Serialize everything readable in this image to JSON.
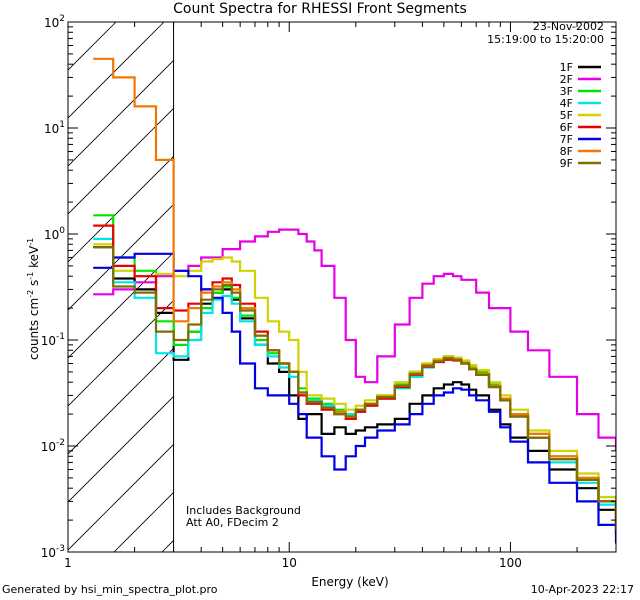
{
  "title": "Count Spectra for RHESSI Front Segments",
  "header_info": {
    "date": "23-Nov-2002",
    "time_range": "15:19:00 to 15:20:00"
  },
  "notes": {
    "background": "Includes Background",
    "attenuator": "Att A0, FDecim 2"
  },
  "footer": {
    "generated_by": "Generated by hsi_min_spectra_plot.pro",
    "timestamp": "10-Apr-2023 22:17"
  },
  "chart_data": {
    "type": "line",
    "title": "Count Spectra for RHESSI Front Segments",
    "xlabel": "Energy (keV)",
    "ylabel": "counts cm-2 s-1 keV-1",
    "xscale": "log",
    "yscale": "log",
    "xlim": [
      1,
      300
    ],
    "ylim": [
      0.001,
      100
    ],
    "x_tick_labels": [
      "1",
      "10",
      "100"
    ],
    "y_tick_labels": [
      "10^-3",
      "10^-2",
      "10^-1",
      "10^0",
      "10^1",
      "10^2"
    ],
    "y_tick_values": [
      0.001,
      0.01,
      0.1,
      1,
      10,
      100
    ],
    "x_tick_values": [
      1,
      10,
      100
    ],
    "hatched_region_keV": [
      1,
      3
    ],
    "legend_position": "top-right",
    "series": [
      {
        "name": "1F",
        "color": "#000000",
        "x": [
          1.3,
          1.6,
          2.0,
          2.5,
          3.0,
          3.5,
          4.0,
          4.5,
          5.0,
          5.5,
          6,
          7,
          8,
          9,
          10,
          11,
          12,
          14,
          16,
          18,
          20,
          22,
          25,
          30,
          35,
          40,
          45,
          50,
          55,
          60,
          65,
          70,
          80,
          90,
          100,
          120,
          150,
          200,
          250,
          300
        ],
        "y": [
          0.75,
          0.38,
          0.3,
          0.18,
          0.065,
          0.12,
          0.22,
          0.28,
          0.3,
          0.24,
          0.16,
          0.09,
          0.06,
          0.05,
          0.03,
          0.018,
          0.02,
          0.013,
          0.015,
          0.013,
          0.014,
          0.015,
          0.016,
          0.018,
          0.025,
          0.03,
          0.035,
          0.038,
          0.04,
          0.038,
          0.034,
          0.03,
          0.022,
          0.016,
          0.012,
          0.009,
          0.006,
          0.004,
          0.0025,
          0.0015
        ]
      },
      {
        "name": "2F",
        "color": "#e600e6",
        "x": [
          1.3,
          1.6,
          2.0,
          2.5,
          3.0,
          3.5,
          4.0,
          5,
          6,
          7,
          8,
          9,
          10,
          11,
          12,
          13,
          14,
          16,
          18,
          20,
          22,
          25,
          30,
          35,
          40,
          45,
          50,
          55,
          60,
          70,
          80,
          100,
          120,
          150,
          200,
          250,
          300
        ],
        "y": [
          0.27,
          0.3,
          0.35,
          0.4,
          0.45,
          0.5,
          0.6,
          0.72,
          0.85,
          0.95,
          1.05,
          1.1,
          1.1,
          1.0,
          0.85,
          0.7,
          0.5,
          0.25,
          0.1,
          0.045,
          0.04,
          0.07,
          0.14,
          0.25,
          0.34,
          0.4,
          0.42,
          0.4,
          0.37,
          0.28,
          0.2,
          0.12,
          0.08,
          0.045,
          0.02,
          0.012,
          0.009
        ]
      },
      {
        "name": "3F",
        "color": "#00e600",
        "x": [
          1.3,
          1.6,
          2.0,
          2.5,
          3.0,
          3.5,
          4.0,
          4.5,
          5.0,
          5.5,
          6,
          7,
          8,
          9,
          10,
          11,
          12,
          14,
          16,
          18,
          20,
          22,
          25,
          30,
          35,
          40,
          45,
          50,
          55,
          60,
          65,
          70,
          80,
          90,
          100,
          120,
          150,
          200,
          250,
          300
        ],
        "y": [
          1.5,
          0.6,
          0.45,
          0.15,
          0.09,
          0.12,
          0.2,
          0.28,
          0.32,
          0.25,
          0.17,
          0.1,
          0.075,
          0.06,
          0.05,
          0.035,
          0.028,
          0.025,
          0.022,
          0.02,
          0.022,
          0.025,
          0.03,
          0.038,
          0.05,
          0.06,
          0.065,
          0.07,
          0.068,
          0.063,
          0.055,
          0.05,
          0.038,
          0.028,
          0.02,
          0.013,
          0.008,
          0.005,
          0.003,
          0.0018
        ]
      },
      {
        "name": "4F",
        "color": "#00e6e6",
        "x": [
          1.3,
          1.6,
          2.0,
          2.5,
          3.0,
          3.5,
          4.0,
          4.5,
          5.0,
          5.5,
          6,
          7,
          8,
          9,
          10,
          11,
          12,
          14,
          16,
          18,
          20,
          22,
          25,
          30,
          35,
          40,
          45,
          50,
          55,
          60,
          65,
          70,
          80,
          90,
          100,
          120,
          150,
          200,
          250,
          300
        ],
        "y": [
          0.9,
          0.35,
          0.25,
          0.075,
          0.07,
          0.1,
          0.18,
          0.24,
          0.26,
          0.22,
          0.15,
          0.09,
          0.07,
          0.055,
          0.045,
          0.03,
          0.027,
          0.024,
          0.021,
          0.02,
          0.021,
          0.024,
          0.028,
          0.035,
          0.045,
          0.055,
          0.062,
          0.066,
          0.065,
          0.06,
          0.053,
          0.047,
          0.036,
          0.027,
          0.019,
          0.012,
          0.007,
          0.0045,
          0.0028,
          0.0015
        ]
      },
      {
        "name": "5F",
        "color": "#d2d200",
        "x": [
          1.3,
          1.6,
          2.0,
          2.5,
          3.0,
          3.5,
          4.0,
          4.5,
          5.0,
          5.5,
          6,
          7,
          8,
          9,
          10,
          11,
          12,
          14,
          16,
          18,
          20,
          22,
          25,
          30,
          35,
          40,
          45,
          50,
          55,
          60,
          65,
          70,
          80,
          90,
          100,
          120,
          150,
          200,
          250,
          300
        ],
        "y": [
          0.8,
          0.45,
          0.4,
          0.42,
          0.4,
          0.45,
          0.55,
          0.58,
          0.6,
          0.55,
          0.45,
          0.25,
          0.15,
          0.12,
          0.1,
          0.05,
          0.03,
          0.028,
          0.025,
          0.022,
          0.024,
          0.027,
          0.03,
          0.04,
          0.05,
          0.06,
          0.066,
          0.07,
          0.068,
          0.064,
          0.058,
          0.052,
          0.04,
          0.03,
          0.022,
          0.014,
          0.009,
          0.0055,
          0.0033,
          0.002
        ]
      },
      {
        "name": "6F",
        "color": "#e60000",
        "x": [
          1.3,
          1.6,
          2.0,
          2.5,
          3.0,
          3.5,
          4.0,
          4.5,
          5.0,
          5.5,
          6,
          7,
          8,
          9,
          10,
          11,
          12,
          14,
          16,
          18,
          20,
          22,
          25,
          30,
          35,
          40,
          45,
          50,
          55,
          60,
          65,
          70,
          80,
          90,
          100,
          120,
          150,
          200,
          250,
          300
        ],
        "y": [
          1.2,
          0.5,
          0.4,
          0.2,
          0.19,
          0.22,
          0.3,
          0.35,
          0.38,
          0.33,
          0.22,
          0.12,
          0.08,
          0.06,
          0.05,
          0.03,
          0.025,
          0.022,
          0.02,
          0.018,
          0.021,
          0.024,
          0.028,
          0.036,
          0.047,
          0.056,
          0.062,
          0.065,
          0.064,
          0.06,
          0.053,
          0.047,
          0.036,
          0.027,
          0.019,
          0.012,
          0.0075,
          0.0048,
          0.003,
          0.0016
        ]
      },
      {
        "name": "7F",
        "color": "#0000e6",
        "x": [
          1.3,
          1.6,
          2.0,
          2.5,
          3.0,
          3.5,
          4.0,
          4.5,
          5.0,
          5.5,
          6,
          7,
          8,
          9,
          10,
          11,
          12,
          14,
          16,
          18,
          20,
          22,
          25,
          30,
          35,
          40,
          45,
          50,
          55,
          60,
          65,
          70,
          80,
          90,
          100,
          120,
          150,
          200,
          250,
          300
        ],
        "y": [
          0.48,
          0.6,
          0.65,
          0.65,
          0.45,
          0.4,
          0.3,
          0.25,
          0.18,
          0.12,
          0.06,
          0.035,
          0.03,
          0.03,
          0.025,
          0.02,
          0.012,
          0.008,
          0.006,
          0.008,
          0.01,
          0.012,
          0.014,
          0.016,
          0.02,
          0.025,
          0.03,
          0.032,
          0.035,
          0.034,
          0.03,
          0.027,
          0.021,
          0.015,
          0.011,
          0.007,
          0.0045,
          0.003,
          0.0018,
          0.0012
        ]
      },
      {
        "name": "8F",
        "color": "#f07800",
        "x": [
          1.3,
          1.6,
          2.0,
          2.5,
          3.0,
          3.5,
          4.0,
          4.5,
          5.0,
          5.5,
          6,
          7,
          8,
          9,
          10,
          11,
          12,
          14,
          16,
          18,
          20,
          22,
          25,
          30,
          35,
          40,
          45,
          50,
          55,
          60,
          65,
          70,
          80,
          90,
          100,
          120,
          150,
          200,
          250,
          300
        ],
        "y": [
          45,
          30,
          16,
          5,
          0.15,
          0.2,
          0.28,
          0.32,
          0.35,
          0.3,
          0.2,
          0.11,
          0.08,
          0.06,
          0.05,
          0.032,
          0.026,
          0.023,
          0.021,
          0.019,
          0.022,
          0.025,
          0.029,
          0.037,
          0.048,
          0.058,
          0.064,
          0.068,
          0.066,
          0.061,
          0.054,
          0.048,
          0.037,
          0.028,
          0.02,
          0.013,
          0.008,
          0.005,
          0.003,
          0.0017
        ]
      },
      {
        "name": "9F",
        "color": "#7f6e00",
        "x": [
          1.3,
          1.6,
          2.0,
          2.5,
          3.0,
          3.5,
          4.0,
          4.5,
          5.0,
          5.5,
          6,
          7,
          8,
          9,
          10,
          11,
          12,
          14,
          16,
          18,
          20,
          22,
          25,
          30,
          35,
          40,
          45,
          50,
          55,
          60,
          65,
          70,
          80,
          90,
          100,
          120,
          150,
          200,
          250,
          300
        ],
        "y": [
          0.75,
          0.32,
          0.28,
          0.12,
          0.1,
          0.14,
          0.24,
          0.3,
          0.33,
          0.28,
          0.19,
          0.11,
          0.08,
          0.06,
          0.05,
          0.032,
          0.026,
          0.023,
          0.02,
          0.019,
          0.022,
          0.025,
          0.029,
          0.037,
          0.048,
          0.057,
          0.063,
          0.067,
          0.065,
          0.06,
          0.053,
          0.047,
          0.036,
          0.027,
          0.019,
          0.012,
          0.0075,
          0.0048,
          0.003,
          0.0016
        ]
      }
    ]
  }
}
